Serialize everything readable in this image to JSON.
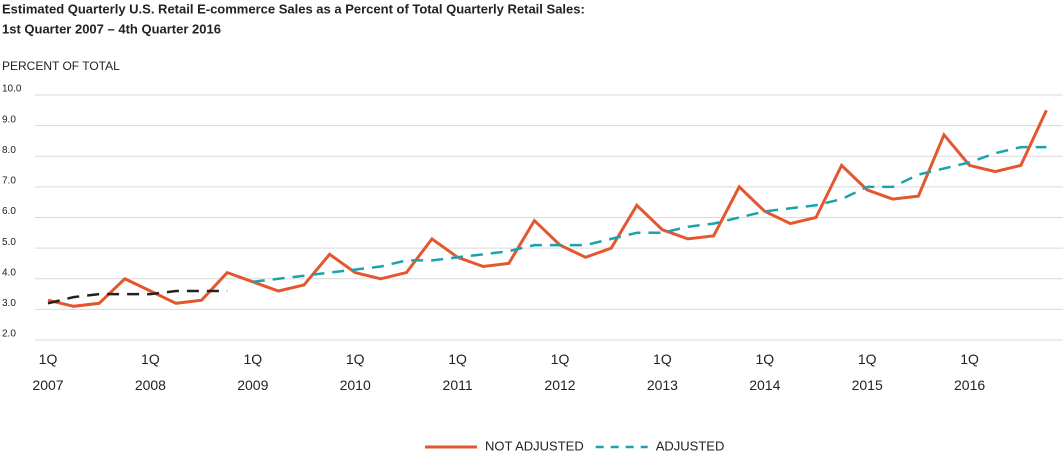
{
  "chart_data": {
    "type": "line",
    "title": "Estimated Quarterly U.S. Retail E-commerce Sales as a Percent of Total Quarterly Retail Sales:",
    "subtitle": "1st Quarter 2007 – 4th Quarter 2016",
    "y_label": "PERCENT OF TOTAL",
    "categories": [
      "1Q 2007",
      null,
      null,
      null,
      "1Q 2008",
      null,
      null,
      null,
      "1Q 2009",
      null,
      null,
      null,
      "1Q 2010",
      null,
      null,
      null,
      "1Q 2011",
      null,
      null,
      null,
      "1Q 2012",
      null,
      null,
      null,
      "1Q 2013",
      null,
      null,
      null,
      "1Q 2014",
      null,
      null,
      null,
      "1Q 2015",
      null,
      null,
      null,
      "1Q 2016",
      null,
      null,
      null
    ],
    "series": [
      {
        "name": "NOT ADJUSTED",
        "color": "#e4572e",
        "dashed": false,
        "values": [
          3.3,
          3.1,
          3.2,
          4.0,
          3.6,
          3.2,
          3.3,
          4.2,
          3.9,
          3.6,
          3.8,
          4.8,
          4.2,
          4.0,
          4.2,
          5.3,
          4.7,
          4.4,
          4.5,
          5.9,
          5.1,
          4.7,
          5.0,
          6.4,
          5.6,
          5.3,
          5.4,
          7.0,
          6.2,
          5.8,
          6.0,
          7.7,
          6.9,
          6.6,
          6.7,
          8.7,
          7.7,
          7.5,
          7.7,
          9.5
        ]
      },
      {
        "name": "ADJUSTED",
        "color": "#1ba3ad",
        "dashed": true,
        "segments": [
          {
            "start": 0,
            "color": "#222222"
          },
          {
            "start": 8,
            "color": "#1ba3ad"
          }
        ],
        "values": [
          3.2,
          3.4,
          3.5,
          3.5,
          3.5,
          3.6,
          3.6,
          3.6,
          3.9,
          4.0,
          4.1,
          4.2,
          4.3,
          4.4,
          4.6,
          4.6,
          4.7,
          4.8,
          4.9,
          5.1,
          5.1,
          5.1,
          5.3,
          5.5,
          5.5,
          5.7,
          5.8,
          6.0,
          6.2,
          6.3,
          6.4,
          6.6,
          7.0,
          7.0,
          7.4,
          7.6,
          7.8,
          8.1,
          8.3,
          8.3
        ]
      }
    ],
    "ylim": [
      2.0,
      10.0
    ],
    "yticks": [
      {
        "value": 2,
        "label": "2.0"
      },
      {
        "value": 3,
        "label": "3.0"
      },
      {
        "value": 4,
        "label": "4.0"
      },
      {
        "value": 5,
        "label": "5.0"
      },
      {
        "value": 6,
        "label": "6.0"
      },
      {
        "value": 7,
        "label": "7.0"
      },
      {
        "value": 8,
        "label": "8.0"
      },
      {
        "value": 9,
        "label": "9.0"
      },
      {
        "value": 10,
        "label": "10.0"
      }
    ],
    "grid": true,
    "legend": "bottom"
  }
}
